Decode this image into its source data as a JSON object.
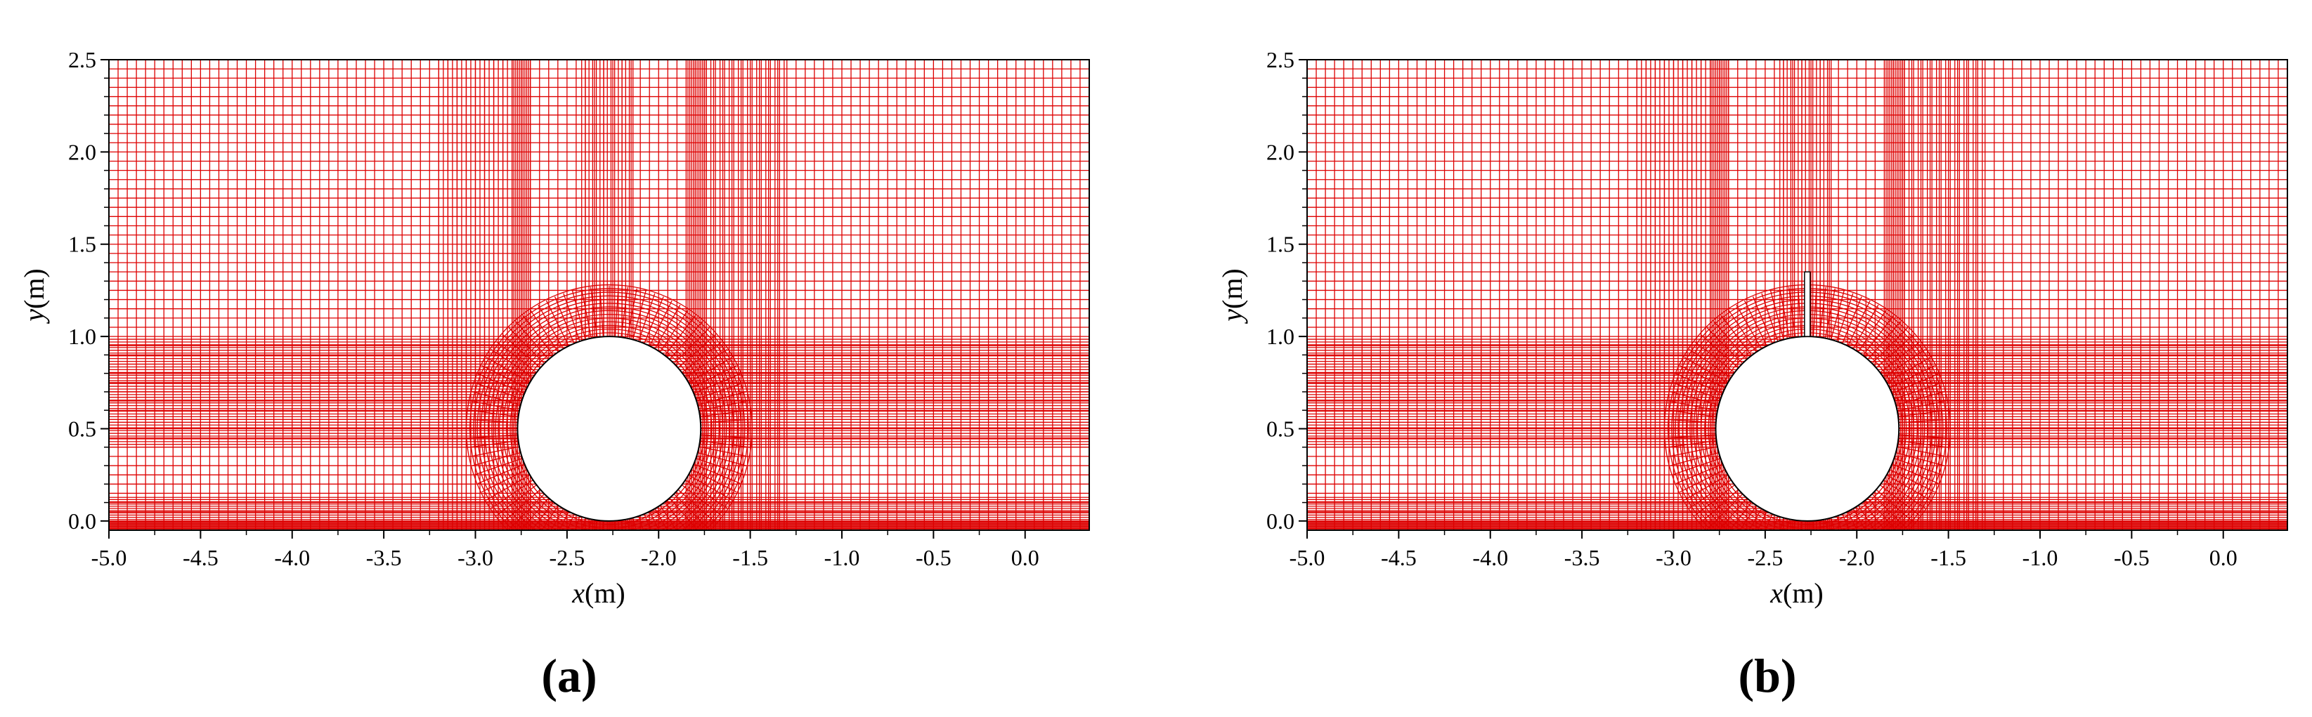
{
  "colors": {
    "mesh": "#dd0000",
    "body": "#ffffff",
    "outline": "#000000"
  },
  "panels": [
    {
      "id": "a",
      "label": "(a)",
      "xlabel": {
        "var": "x",
        "unit": "(m)"
      },
      "ylabel": {
        "var": "y",
        "unit": "(m)"
      },
      "xlim": [
        -5.0,
        0.35
      ],
      "ylim": [
        -0.05,
        2.5
      ],
      "x_ticks": [
        "-5.0",
        "-4.5",
        "-4.0",
        "-3.5",
        "-3.0",
        "-2.5",
        "-2.0",
        "-1.5",
        "-1.0",
        "-0.5",
        "0.0"
      ],
      "y_ticks": [
        "0.0",
        "0.5",
        "1.0",
        "1.5",
        "2.0",
        "2.5"
      ],
      "cylinder": {
        "center": [
          -2.27,
          0.5
        ],
        "radius": 0.5
      },
      "plate": null
    },
    {
      "id": "b",
      "label": "(b)",
      "xlabel": {
        "var": "x",
        "unit": "(m)"
      },
      "ylabel": {
        "var": "y",
        "unit": "(m)"
      },
      "xlim": [
        -5.0,
        0.35
      ],
      "ylim": [
        -0.05,
        2.5
      ],
      "x_ticks": [
        "-5.0",
        "-4.5",
        "-4.0",
        "-3.5",
        "-3.0",
        "-2.5",
        "-2.0",
        "-1.5",
        "-1.0",
        "-0.5",
        "0.0"
      ],
      "y_ticks": [
        "0.0",
        "0.5",
        "1.0",
        "1.5",
        "2.0",
        "2.5"
      ],
      "cylinder": {
        "center": [
          -2.27,
          0.5
        ],
        "radius": 0.5
      },
      "plate": {
        "x": -2.27,
        "y_bottom": 1.0,
        "y_top": 1.35
      }
    }
  ]
}
